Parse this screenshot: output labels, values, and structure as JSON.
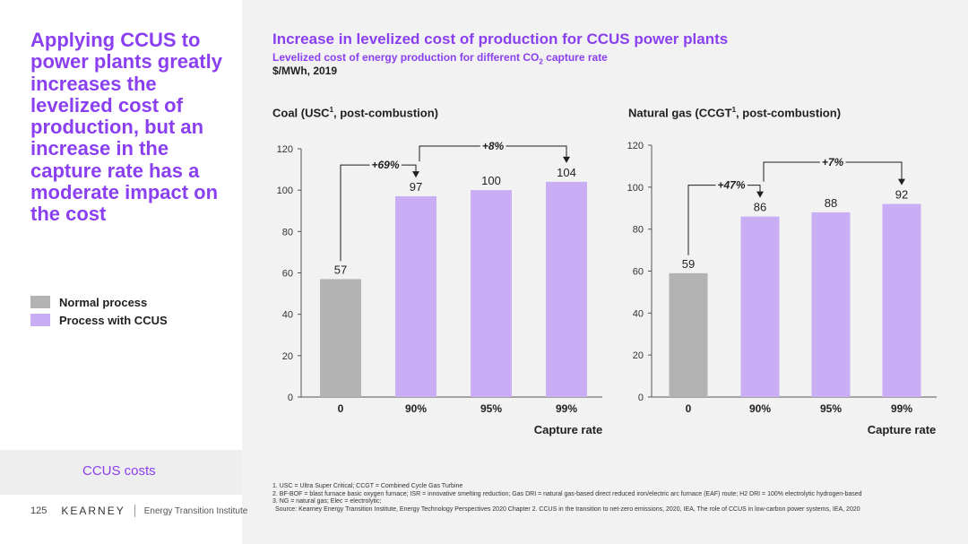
{
  "headline": "Applying CCUS to power plants greatly increases the levelized cost of production, but an increase in the capture rate has a moderate impact on the cost",
  "legend": [
    {
      "label": "Normal process",
      "color": "#b3b3b3"
    },
    {
      "label": "Process with CCUS",
      "color": "#c9aef5"
    }
  ],
  "section_label": "CCUS costs",
  "footer": {
    "page_number": "125",
    "brand": "KEARNEY",
    "institute": "Energy Transition Institute"
  },
  "title": "Increase in levelized cost of production for CCUS power plants",
  "subtitle_part1": "Levelized cost of energy production for different CO",
  "subtitle_sub": "2",
  "subtitle_part2": " capture rate",
  "unit": "$/MWh, 2019",
  "footnotes": [
    "1. USC = Ultra Super Critical; CCGT = Combined Cycle Gas Turbine",
    "2. BF-BOF = blast furnace basic oxygen furnace; ISR = innovative smelting reduction; Gas DRI = natural gas-based direct reduced iron/electric arc furnace (EAF) route; H2 DRI = 100% electrolytic hydrogen-based",
    "3. NG = natural gas; Elec = electrolytic;",
    "Source: Kearney Energy Transition Institute, Energy Technology Perspectives 2020 Chapter 2. CCUS in the transition to net-zero emissions, 2020, IEA, The role of CCUS in low-carbon power systems, IEA, 2020"
  ],
  "colors": {
    "accent": "#8a3ff0",
    "normal": "#b3b3b3",
    "ccus": "#c9aef5",
    "axis": "#555555"
  },
  "chart_data": [
    {
      "type": "bar",
      "title_main": "Coal (USC",
      "title_sup": "1",
      "title_rest": ", post-combustion)",
      "categories": [
        "0",
        "90%",
        "95%",
        "99%"
      ],
      "values": [
        57,
        97,
        100,
        104
      ],
      "bar_types": [
        "normal",
        "ccus",
        "ccus",
        "ccus"
      ],
      "xlabel": "Capture rate",
      "ylim": [
        0,
        120
      ],
      "yticks": [
        0,
        20,
        40,
        60,
        80,
        100,
        120
      ],
      "annotations": [
        {
          "label": "+69%",
          "from_index": 0,
          "to_index": 1
        },
        {
          "label": "+8%",
          "from_index": 1,
          "to_index": 3
        }
      ]
    },
    {
      "type": "bar",
      "title_main": "Natural gas (CCGT",
      "title_sup": "1",
      "title_rest": ", post-combustion)",
      "categories": [
        "0",
        "90%",
        "95%",
        "99%"
      ],
      "values": [
        59,
        86,
        88,
        92
      ],
      "bar_types": [
        "normal",
        "ccus",
        "ccus",
        "ccus"
      ],
      "xlabel": "Capture rate",
      "ylim": [
        0,
        120
      ],
      "yticks": [
        0,
        20,
        40,
        60,
        80,
        100,
        120
      ],
      "annotations": [
        {
          "label": "+47%",
          "from_index": 0,
          "to_index": 1
        },
        {
          "label": "+7%",
          "from_index": 1,
          "to_index": 3
        }
      ]
    }
  ]
}
